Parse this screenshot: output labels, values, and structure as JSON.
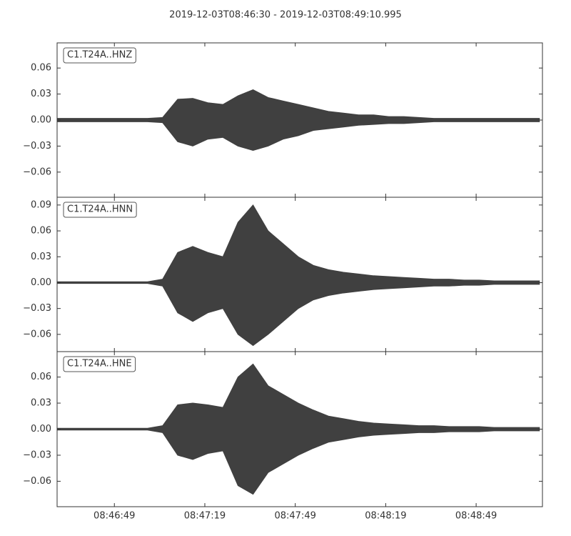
{
  "title": "2019-12-03T08:46:30  -  2019-12-03T08:49:10.995",
  "chart_data": [
    {
      "type": "area",
      "label": "C1.T24A..HNZ",
      "color": "#404040",
      "x": [
        0,
        5,
        10,
        15,
        20,
        25,
        30,
        35,
        40,
        45,
        50,
        55,
        60,
        65,
        70,
        75,
        80,
        85,
        90,
        95,
        100,
        105,
        110,
        115,
        120,
        125,
        130,
        135,
        140,
        145,
        150,
        155,
        160
      ],
      "upper": [
        0.002,
        0.002,
        0.002,
        0.002,
        0.002,
        0.002,
        0.002,
        0.003,
        0.024,
        0.025,
        0.02,
        0.018,
        0.028,
        0.035,
        0.026,
        0.022,
        0.018,
        0.014,
        0.01,
        0.008,
        0.006,
        0.006,
        0.004,
        0.004,
        0.003,
        0.002,
        0.002,
        0.002,
        0.002,
        0.002,
        0.002,
        0.002,
        0.002
      ],
      "lower": [
        -0.002,
        -0.002,
        -0.002,
        -0.002,
        -0.002,
        -0.002,
        -0.002,
        -0.003,
        -0.025,
        -0.03,
        -0.022,
        -0.02,
        -0.03,
        -0.035,
        -0.03,
        -0.022,
        -0.018,
        -0.012,
        -0.01,
        -0.008,
        -0.006,
        -0.005,
        -0.004,
        -0.004,
        -0.003,
        -0.002,
        -0.002,
        -0.002,
        -0.002,
        -0.002,
        -0.002,
        -0.002,
        -0.002
      ],
      "xlim": [
        0,
        160.995
      ],
      "ylim": [
        -0.089,
        0.089
      ],
      "yticks": [
        {
          "value": -0.06,
          "label": "−0.06"
        },
        {
          "value": -0.03,
          "label": "−0.03"
        },
        {
          "value": 0,
          "label": "0.00"
        },
        0.03,
        0.06
      ]
    },
    {
      "type": "area",
      "label": "C1.T24A..HNN",
      "color": "#404040",
      "x": [
        0,
        5,
        10,
        15,
        20,
        25,
        30,
        35,
        40,
        45,
        50,
        55,
        60,
        65,
        70,
        75,
        80,
        85,
        90,
        95,
        100,
        105,
        110,
        115,
        120,
        125,
        130,
        135,
        140,
        145,
        150,
        155,
        160
      ],
      "upper": [
        0.001,
        0.001,
        0.001,
        0.001,
        0.001,
        0.001,
        0.001,
        0.004,
        0.035,
        0.042,
        0.035,
        0.03,
        0.07,
        0.09,
        0.06,
        0.045,
        0.03,
        0.02,
        0.015,
        0.012,
        0.01,
        0.008,
        0.007,
        0.006,
        0.005,
        0.004,
        0.004,
        0.003,
        0.003,
        0.002,
        0.002,
        0.002,
        0.002
      ],
      "lower": [
        -0.001,
        -0.001,
        -0.001,
        -0.001,
        -0.001,
        -0.001,
        -0.001,
        -0.004,
        -0.035,
        -0.045,
        -0.035,
        -0.03,
        -0.06,
        -0.073,
        -0.06,
        -0.045,
        -0.03,
        -0.02,
        -0.015,
        -0.012,
        -0.01,
        -0.008,
        -0.007,
        -0.006,
        -0.005,
        -0.004,
        -0.004,
        -0.003,
        -0.003,
        -0.002,
        -0.002,
        -0.002,
        -0.002
      ],
      "xlim": [
        0,
        160.995
      ],
      "ylim": [
        -0.08,
        0.099
      ],
      "yticks": [
        {
          "value": -0.06,
          "label": "−0.06"
        },
        {
          "value": -0.03,
          "label": "−0.03"
        },
        {
          "value": 0,
          "label": "0.00"
        },
        0.03,
        0.06,
        0.09
      ]
    },
    {
      "type": "area",
      "label": "C1.T24A..HNE",
      "color": "#404040",
      "x": [
        0,
        5,
        10,
        15,
        20,
        25,
        30,
        35,
        40,
        45,
        50,
        55,
        60,
        65,
        70,
        75,
        80,
        85,
        90,
        95,
        100,
        105,
        110,
        115,
        120,
        125,
        130,
        135,
        140,
        145,
        150,
        155,
        160
      ],
      "upper": [
        0.001,
        0.001,
        0.001,
        0.001,
        0.001,
        0.001,
        0.001,
        0.004,
        0.028,
        0.03,
        0.028,
        0.025,
        0.06,
        0.075,
        0.05,
        0.04,
        0.03,
        0.022,
        0.015,
        0.012,
        0.009,
        0.007,
        0.006,
        0.005,
        0.004,
        0.004,
        0.003,
        0.003,
        0.003,
        0.002,
        0.002,
        0.002,
        0.002
      ],
      "lower": [
        -0.001,
        -0.001,
        -0.001,
        -0.001,
        -0.001,
        -0.001,
        -0.001,
        -0.004,
        -0.03,
        -0.035,
        -0.028,
        -0.025,
        -0.065,
        -0.075,
        -0.05,
        -0.04,
        -0.03,
        -0.022,
        -0.015,
        -0.012,
        -0.009,
        -0.007,
        -0.006,
        -0.005,
        -0.004,
        -0.004,
        -0.003,
        -0.003,
        -0.003,
        -0.002,
        -0.002,
        -0.002,
        -0.002
      ],
      "xlim": [
        0,
        160.995
      ],
      "ylim": [
        -0.0893,
        0.0893
      ],
      "yticks": [
        {
          "value": -0.06,
          "label": "−0.06"
        },
        {
          "value": -0.03,
          "label": "−0.03"
        },
        {
          "value": 0,
          "label": "0.00"
        },
        0.03,
        0.06
      ],
      "xticks": [
        {
          "value": 19,
          "label": "08:46:49"
        },
        {
          "value": 49,
          "label": "08:47:19"
        },
        {
          "value": 79,
          "label": "08:47:49"
        },
        {
          "value": 109,
          "label": "08:48:19"
        },
        {
          "value": 139,
          "label": "08:48:49"
        }
      ]
    }
  ]
}
